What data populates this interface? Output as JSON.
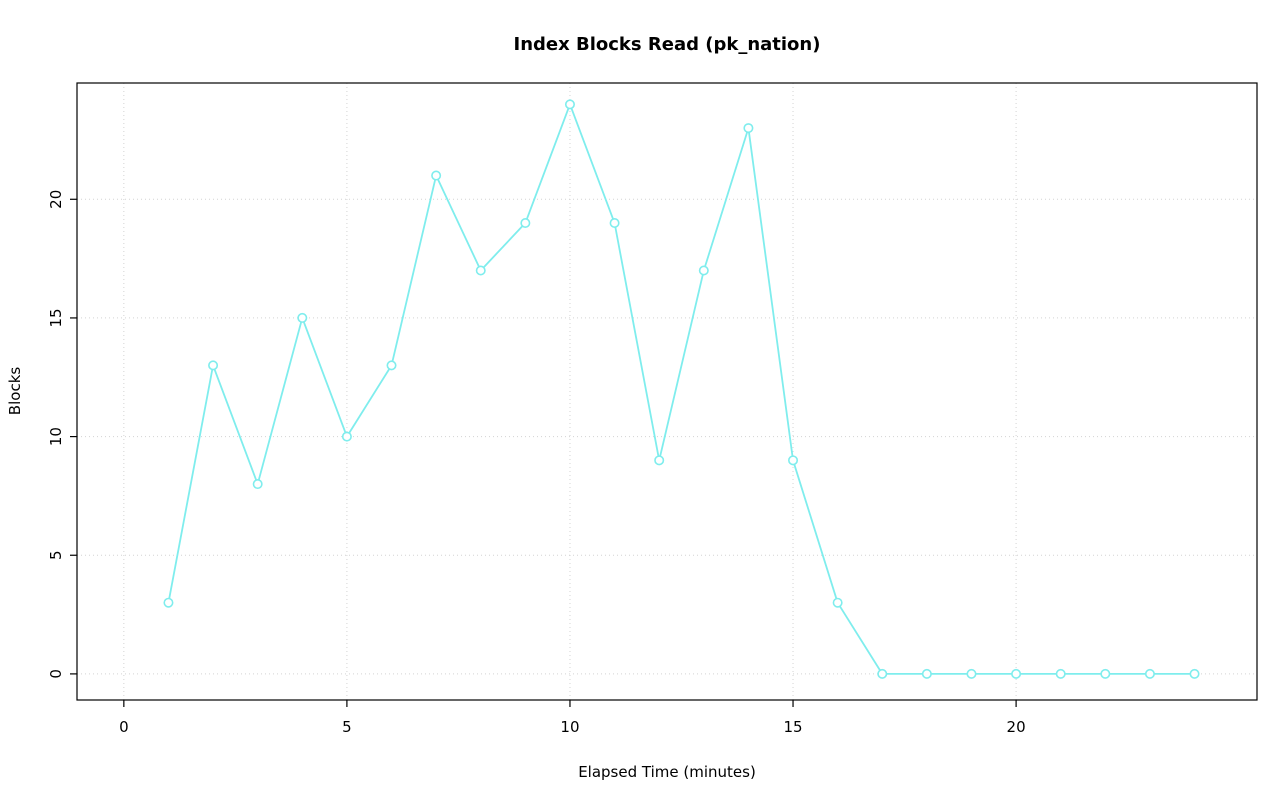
{
  "chart_data": {
    "type": "line",
    "title": "Index Blocks Read (pk_nation)",
    "xlabel": "Elapsed Time (minutes)",
    "ylabel": "Blocks",
    "x": [
      1,
      2,
      3,
      4,
      5,
      6,
      7,
      8,
      9,
      10,
      11,
      12,
      13,
      14,
      15,
      16,
      17,
      18,
      19,
      20,
      21,
      22,
      23,
      24
    ],
    "values": [
      3,
      13,
      8,
      15,
      10,
      13,
      21,
      17,
      19,
      24,
      19,
      9,
      17,
      23,
      9,
      3,
      0,
      0,
      0,
      0,
      0,
      0,
      0,
      0
    ],
    "xlim": [
      -1.05,
      25.4
    ],
    "ylim": [
      -1.1,
      24.9
    ],
    "xticks": [
      0,
      5,
      10,
      15,
      20
    ],
    "yticks": [
      0,
      5,
      10,
      15,
      20
    ],
    "grid": true,
    "legend": "none",
    "line_color": "#7FEDED",
    "marker": "open-circle",
    "marker_fill": "#ffffff",
    "grid_color": "#d3d3d3",
    "axis_color": "#000000"
  }
}
